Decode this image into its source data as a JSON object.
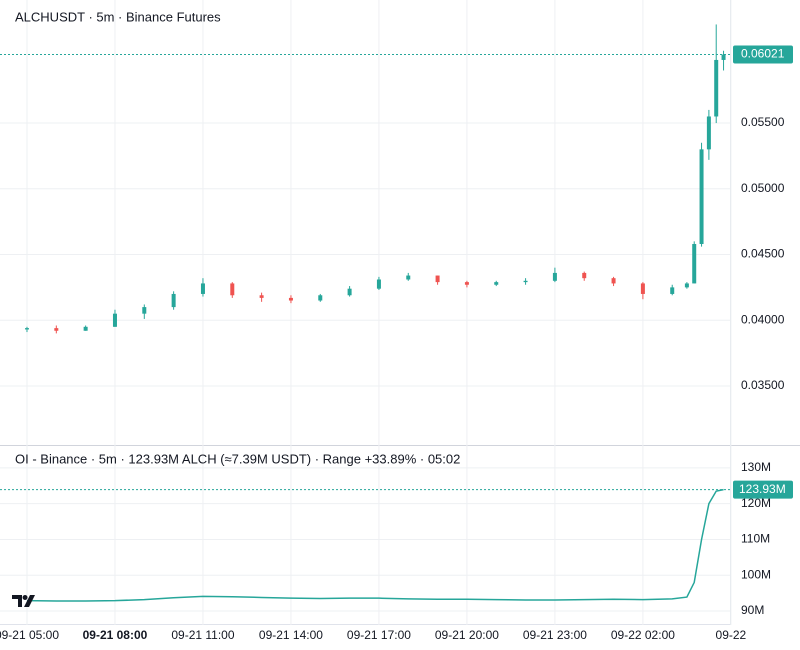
{
  "chart_data": [
    {
      "type": "candlestick",
      "title": "ALCHUSDT · 5m · Binance Futures",
      "x": [
        5,
        6,
        7,
        8,
        9,
        10,
        11,
        12,
        13,
        14,
        15,
        16,
        17,
        18,
        19,
        20,
        21,
        22,
        23,
        24,
        25,
        26,
        27,
        27.5,
        27.75,
        28,
        28.25,
        28.5,
        28.75
      ],
      "open": [
        0.0393,
        0.0394,
        0.0392,
        0.0395,
        0.0405,
        0.041,
        0.042,
        0.0428,
        0.0419,
        0.0417,
        0.0415,
        0.0419,
        0.0424,
        0.0431,
        0.0434,
        0.0429,
        0.0427,
        0.0429,
        0.043,
        0.0436,
        0.0432,
        0.0428,
        0.042,
        0.0425,
        0.0428,
        0.0458,
        0.053,
        0.0555,
        0.0598
      ],
      "high": [
        0.0395,
        0.0396,
        0.0396,
        0.0408,
        0.0412,
        0.0422,
        0.0432,
        0.0429,
        0.0421,
        0.0419,
        0.042,
        0.0426,
        0.0433,
        0.0436,
        0.0434,
        0.043,
        0.043,
        0.0432,
        0.044,
        0.0437,
        0.0433,
        0.0429,
        0.0427,
        0.0429,
        0.046,
        0.0535,
        0.056,
        0.0625,
        0.0605
      ],
      "low": [
        0.0391,
        0.039,
        0.0392,
        0.0395,
        0.0401,
        0.0408,
        0.0418,
        0.0417,
        0.0414,
        0.0413,
        0.0414,
        0.0418,
        0.0423,
        0.043,
        0.0427,
        0.0425,
        0.0426,
        0.0427,
        0.0429,
        0.043,
        0.0426,
        0.0416,
        0.0419,
        0.0424,
        0.0428,
        0.0456,
        0.0522,
        0.055,
        0.059
      ],
      "close": [
        0.0394,
        0.0392,
        0.0395,
        0.0405,
        0.041,
        0.042,
        0.0428,
        0.0419,
        0.0417,
        0.0415,
        0.0419,
        0.0424,
        0.0431,
        0.0434,
        0.0429,
        0.0427,
        0.0429,
        0.043,
        0.0436,
        0.0432,
        0.0428,
        0.042,
        0.0425,
        0.0428,
        0.0458,
        0.053,
        0.0555,
        0.0598,
        0.06021
      ],
      "up_color": "#26a69a",
      "down_color": "#ef5350",
      "xlim": [
        4.08,
        28.97
      ],
      "ylim": [
        0.03051,
        0.06436
      ],
      "yticks": [
        {
          "value": 0.035,
          "label": "0.03500"
        },
        {
          "value": 0.04,
          "label": "0.04000"
        },
        {
          "value": 0.045,
          "label": "0.04500"
        },
        {
          "value": 0.05,
          "label": "0.05000"
        },
        {
          "value": 0.055,
          "label": "0.05500"
        }
      ],
      "grid": true
    },
    {
      "type": "line",
      "title": "OI - Binance · 5m · 123.93M ALCH (≈7.39M USDT) · Range +33.89% · 05:02",
      "x": [
        5,
        6,
        7,
        8,
        9,
        10,
        11,
        12,
        13,
        14,
        15,
        16,
        17,
        18,
        19,
        20,
        21,
        22,
        23,
        24,
        25,
        26,
        27,
        27.5,
        27.75,
        28,
        28.25,
        28.5,
        28.75
      ],
      "values": [
        92.9,
        92.8,
        92.8,
        92.9,
        93.2,
        93.7,
        94.1,
        94.0,
        93.8,
        93.6,
        93.5,
        93.6,
        93.6,
        93.4,
        93.3,
        93.3,
        93.2,
        93.1,
        93.1,
        93.2,
        93.3,
        93.2,
        93.4,
        93.9,
        98,
        110,
        120,
        123.5,
        123.93
      ],
      "last_label": "123.93M",
      "color": "#26a69a",
      "xlim": [
        4.08,
        28.97
      ],
      "ylim": [
        86.1,
        135.0
      ],
      "yticks": [
        {
          "value": 90,
          "label": "90M"
        },
        {
          "value": 100,
          "label": "100M"
        },
        {
          "value": 110,
          "label": "110M"
        },
        {
          "value": 120,
          "label": "120M"
        },
        {
          "value": 130,
          "label": "130M"
        }
      ],
      "xticks": [
        {
          "value": 5,
          "label": "09-21 05:00"
        },
        {
          "value": 8,
          "label": "09-21 08:00",
          "bold": true
        },
        {
          "value": 11,
          "label": "09-21 11:00"
        },
        {
          "value": 14,
          "label": "09-21 14:00"
        },
        {
          "value": 17,
          "label": "09-21 17:00"
        },
        {
          "value": 20,
          "label": "09-21 20:00"
        },
        {
          "value": 23,
          "label": "09-21 23:00"
        },
        {
          "value": 26,
          "label": "09-22 02:00"
        },
        {
          "value": 29,
          "label": "09-22"
        }
      ],
      "grid": true
    }
  ]
}
